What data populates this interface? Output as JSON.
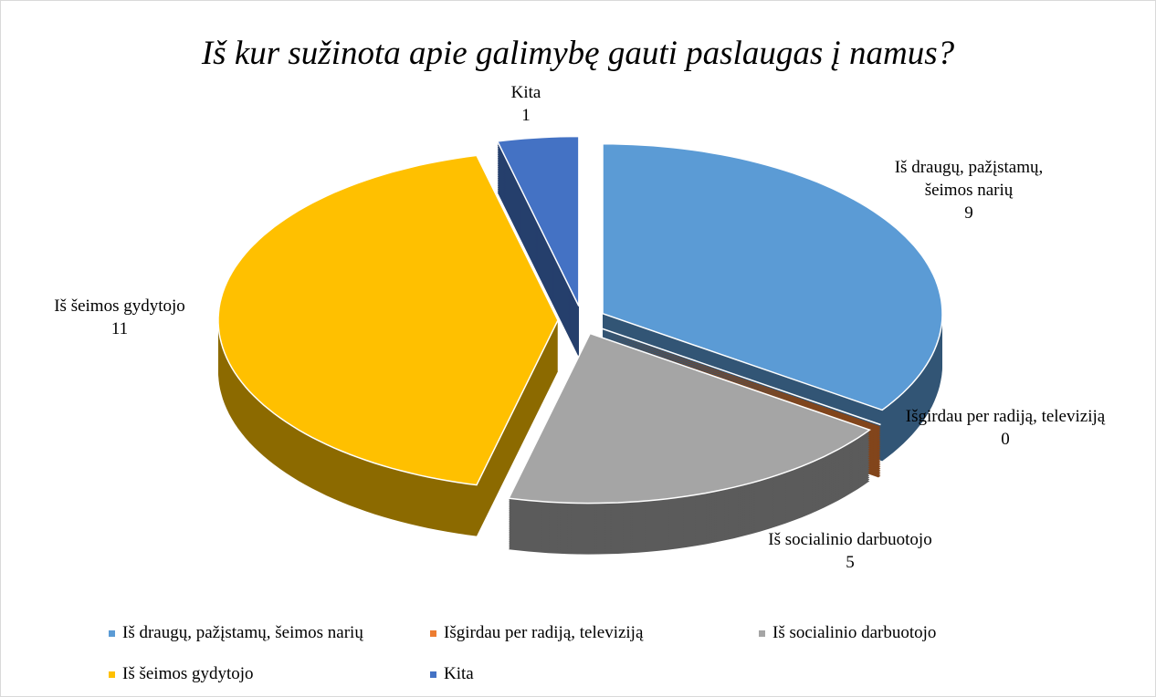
{
  "chart_data": {
    "type": "pie",
    "title": "Iš kur sužinota apie galimybę gauti paslaugas į namus?",
    "categories": [
      "Iš draugų, pažįstamų, šeimos narių",
      "Išgirdau per radiją, televiziją",
      "Iš socialinio darbuotojo",
      "Iš šeimos gydytojo",
      "Kita"
    ],
    "values": [
      9,
      0,
      5,
      11,
      1
    ],
    "colors": [
      "#5b9bd5",
      "#ed7d31",
      "#a5a5a5",
      "#ffc000",
      "#4472c4"
    ],
    "legend": "bottom"
  }
}
